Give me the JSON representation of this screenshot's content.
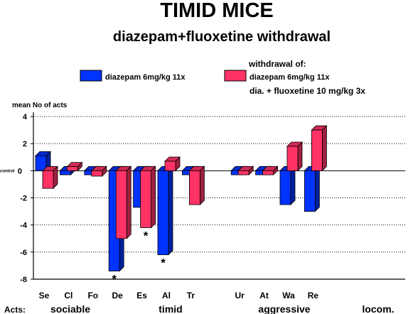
{
  "chart_data": {
    "type": "bar",
    "title": "TIMID MICE",
    "subtitle": "diazepam+fluoxetine withdrawal",
    "ylabel": "mean No of acts",
    "ylim": [
      -8,
      4
    ],
    "yticks": [
      {
        "value": 4,
        "label": "4"
      },
      {
        "value": 2,
        "label": "2"
      },
      {
        "value": 0,
        "label": "0"
      },
      {
        "value": -2,
        "label": "-2"
      },
      {
        "value": -4,
        "label": "-4"
      },
      {
        "value": -6,
        "label": "-6"
      },
      {
        "value": -8,
        "label": "-8"
      }
    ],
    "control_label": "control",
    "grid": true,
    "legend_heading": "withdrawal of:",
    "series": [
      {
        "name": "diazepam 6mg/kg 11x",
        "color": "#0033ff",
        "values": [
          1.1,
          -0.3,
          -0.3,
          -7.4,
          -2.7,
          -6.2,
          -0.3,
          null,
          -0.3,
          -0.3,
          -2.5,
          -3.0
        ]
      },
      {
        "name": "diazepam 6mg/kg 11x\ndia. + fluoxetine 10 mg/kg 3x",
        "name_lines": [
          "diazepam 6mg/kg 11x",
          "dia. + fluoxetine 10 mg/kg 3x"
        ],
        "color": "#ff3366",
        "values": [
          -1.3,
          0.3,
          -0.4,
          -5.0,
          -4.2,
          0.7,
          -2.5,
          null,
          -0.3,
          -0.3,
          1.8,
          3.0
        ]
      }
    ],
    "categories": [
      "Se",
      "Cl",
      "Fo",
      "De",
      "Es",
      "Al",
      "Tr",
      "",
      "Ur",
      "At",
      "Wa",
      "Re"
    ],
    "significance": [
      {
        "category": "De",
        "series": 0,
        "marker": "*"
      },
      {
        "category": "Es",
        "series": 1,
        "marker": "*"
      },
      {
        "category": "Al",
        "series": 0,
        "marker": "*"
      }
    ],
    "acts_label": "Acts:",
    "groups": [
      "sociable",
      "timid",
      "aggressive",
      "locom."
    ]
  }
}
